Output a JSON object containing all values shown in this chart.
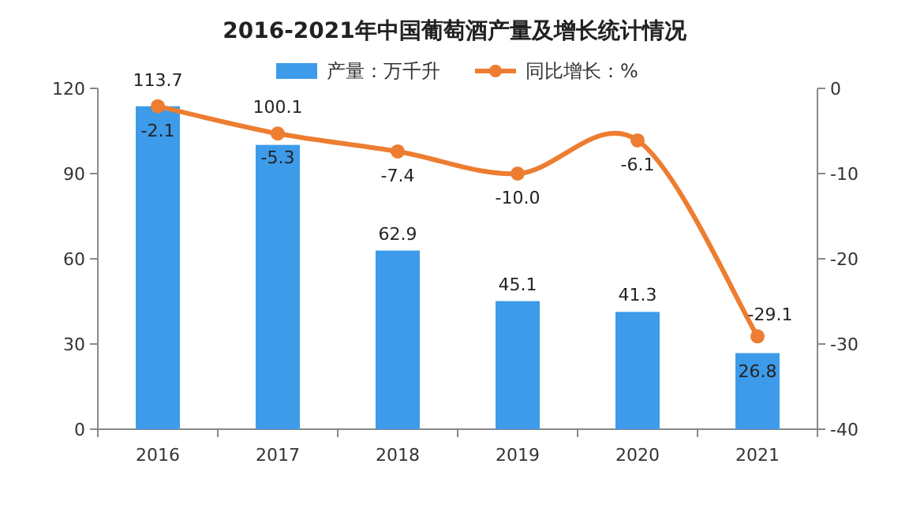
{
  "chart_data": {
    "type": "bar",
    "title": "2016-2021年中国葡萄酒产量及增长统计情况",
    "categories": [
      "2016",
      "2017",
      "2018",
      "2019",
      "2020",
      "2021"
    ],
    "series": [
      {
        "name": "产量：万千升",
        "color": "#3d9be9",
        "values": [
          113.7,
          100.1,
          62.9,
          45.1,
          41.3,
          26.8
        ]
      },
      {
        "name": "同比增长：%",
        "type": "line",
        "axis": "y2",
        "color": "#ed7d31",
        "marker": "circle",
        "values": [
          -2.1,
          -5.3,
          -7.4,
          -10.0,
          -6.1,
          -29.1
        ],
        "value_labels": [
          "-2.1",
          "-5.3",
          "-7.4",
          "-10.0",
          "-6.1",
          "-29.1"
        ]
      }
    ],
    "ylim": [
      0,
      120
    ],
    "yticks": [
      0,
      30,
      60,
      90,
      120
    ],
    "y2lim": [
      -40,
      0
    ],
    "y2ticks": [
      -40,
      -30,
      -20,
      -10,
      0
    ],
    "data_labels": true,
    "legend": "top",
    "grid": false
  }
}
